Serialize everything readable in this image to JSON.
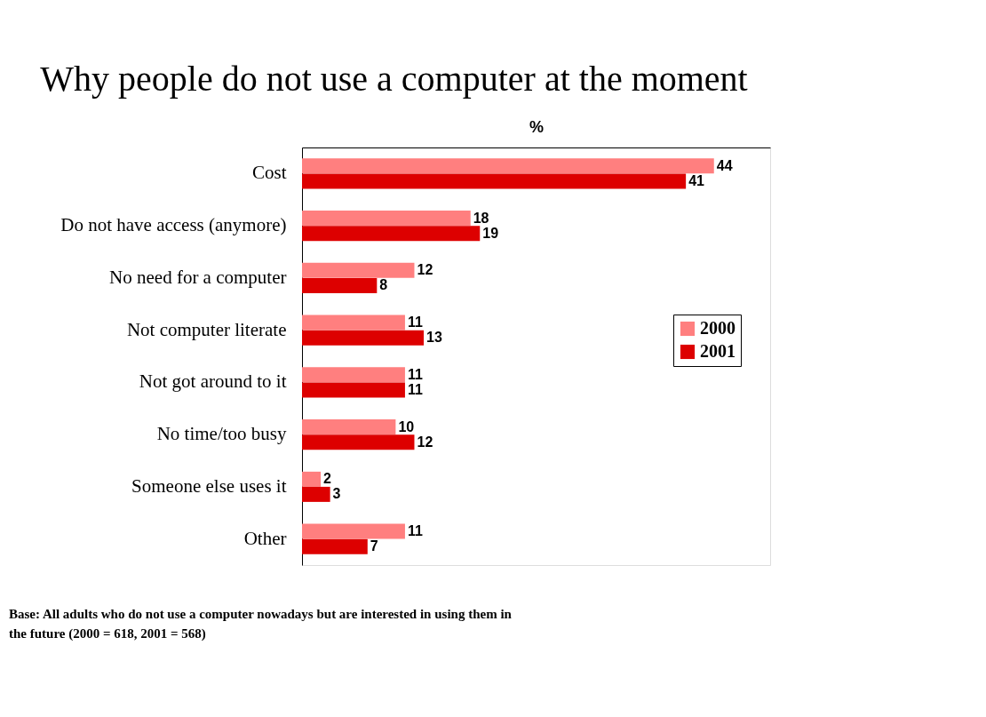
{
  "chart_data": {
    "type": "bar",
    "orientation": "horizontal",
    "title": "Why people do not use a computer at the moment",
    "xlabel": "%",
    "categories": [
      "Cost",
      "Do not have access (anymore)",
      "No need for a computer",
      "Not computer literate",
      "Not got around to it",
      "No time/too busy",
      "Someone else uses it",
      "Other"
    ],
    "series": [
      {
        "name": "2000",
        "color": "#ff7f7f",
        "values": [
          44,
          18,
          12,
          11,
          11,
          10,
          2,
          11
        ]
      },
      {
        "name": "2001",
        "color": "#dd0000",
        "values": [
          41,
          19,
          8,
          13,
          11,
          12,
          3,
          7
        ]
      }
    ],
    "xlim": [
      0,
      50
    ],
    "tick_labels": "y",
    "data_labels": true,
    "grid": false,
    "legend": "right",
    "annotations": [
      "Base:  All adults who do not use a computer nowadays but are interested in using them in the future (2000 = 618, 2001 = 568)"
    ]
  }
}
